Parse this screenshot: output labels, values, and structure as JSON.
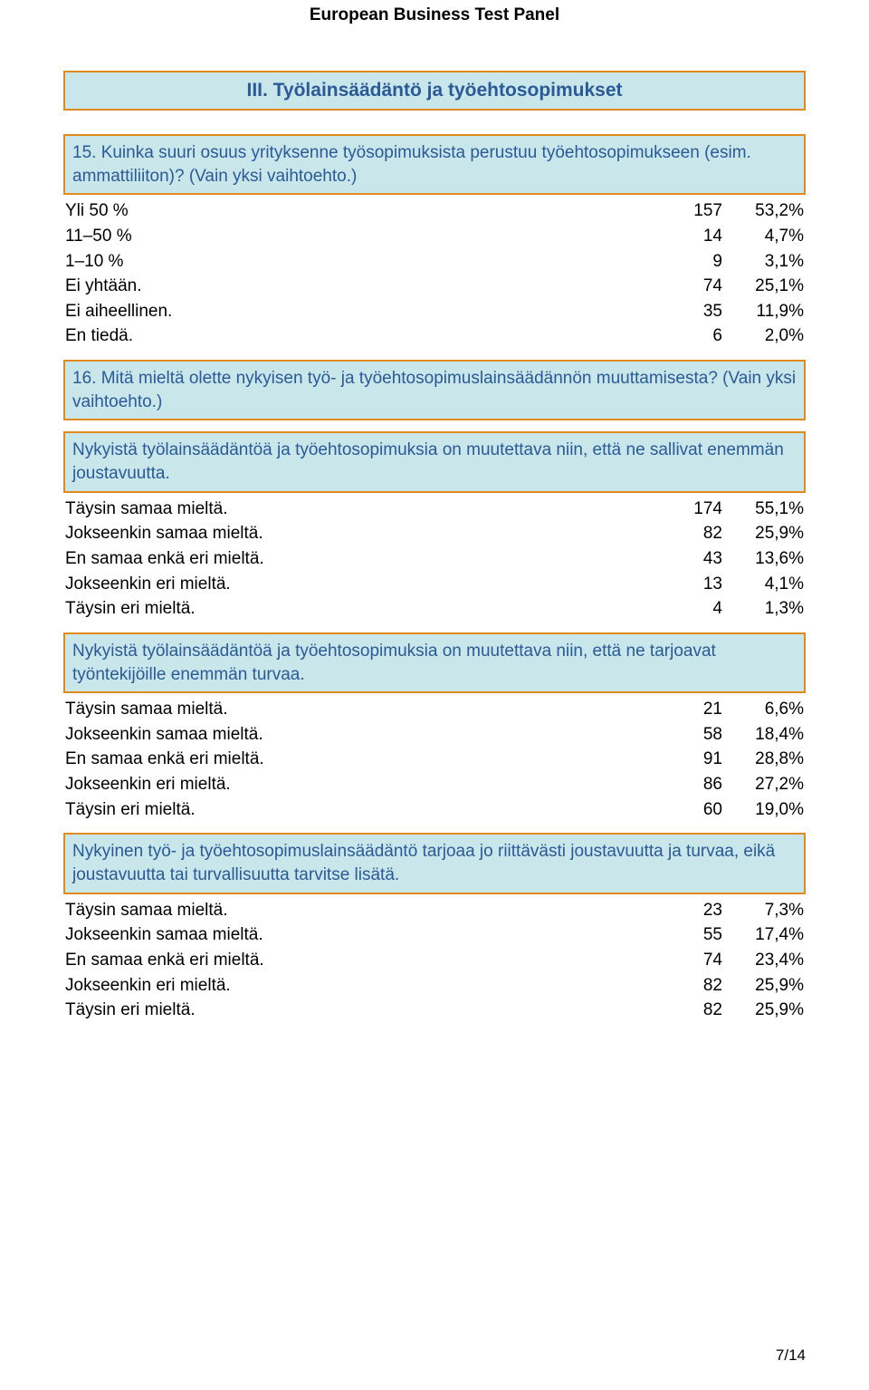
{
  "header": "European Business Test Panel",
  "section_title": "III. Työlainsäädäntö ja työehtosopimukset",
  "q15": {
    "text": "15. Kuinka suuri osuus yrityksenne työsopimuksista perustuu työehtosopimukseen (esim. ammattiliiton)? (Vain yksi vaihtoehto.)",
    "rows": [
      {
        "label": "Yli 50 %",
        "n": "157",
        "pct": "53,2%"
      },
      {
        "label": "11–50 %",
        "n": "14",
        "pct": "4,7%"
      },
      {
        "label": "1–10 %",
        "n": "9",
        "pct": "3,1%"
      },
      {
        "label": "Ei yhtään.",
        "n": "74",
        "pct": "25,1%"
      },
      {
        "label": "Ei aiheellinen.",
        "n": "35",
        "pct": "11,9%"
      },
      {
        "label": "En tiedä.",
        "n": "6",
        "pct": "2,0%"
      }
    ]
  },
  "q16": {
    "text": "16. Mitä mieltä olette nykyisen työ- ja työehtosopimuslainsäädännön muuttamisesta? (Vain yksi vaihtoehto.)",
    "subs": [
      {
        "text": "Nykyistä työlainsäädäntöä ja työehtosopimuksia on muutettava niin, että ne sallivat enemmän joustavuutta.",
        "rows": [
          {
            "label": "Täysin samaa mieltä.",
            "n": "174",
            "pct": "55,1%"
          },
          {
            "label": "Jokseenkin samaa mieltä.",
            "n": "82",
            "pct": "25,9%"
          },
          {
            "label": "En samaa enkä eri mieltä.",
            "n": "43",
            "pct": "13,6%"
          },
          {
            "label": "Jokseenkin eri mieltä.",
            "n": "13",
            "pct": "4,1%"
          },
          {
            "label": "Täysin eri mieltä.",
            "n": "4",
            "pct": "1,3%"
          }
        ]
      },
      {
        "text": "Nykyistä työlainsäädäntöä ja työehtosopimuksia on muutettava niin, että ne tarjoavat työntekijöille enemmän turvaa.",
        "rows": [
          {
            "label": "Täysin samaa mieltä.",
            "n": "21",
            "pct": "6,6%"
          },
          {
            "label": "Jokseenkin samaa mieltä.",
            "n": "58",
            "pct": "18,4%"
          },
          {
            "label": "En samaa enkä eri mieltä.",
            "n": "91",
            "pct": "28,8%"
          },
          {
            "label": "Jokseenkin eri mieltä.",
            "n": "86",
            "pct": "27,2%"
          },
          {
            "label": "Täysin eri mieltä.",
            "n": "60",
            "pct": "19,0%"
          }
        ]
      },
      {
        "text": "Nykyinen työ- ja työehtosopimuslainsäädäntö  tarjoaa jo riittävästi joustavuutta ja turvaa, eikä joustavuutta tai turvallisuutta tarvitse lisätä.",
        "rows": [
          {
            "label": "Täysin samaa mieltä.",
            "n": "23",
            "pct": "7,3%"
          },
          {
            "label": "Jokseenkin samaa mieltä.",
            "n": "55",
            "pct": "17,4%"
          },
          {
            "label": "En samaa enkä eri mieltä.",
            "n": "74",
            "pct": "23,4%"
          },
          {
            "label": "Jokseenkin eri mieltä.",
            "n": "82",
            "pct": "25,9%"
          },
          {
            "label": "Täysin eri mieltä.",
            "n": "82",
            "pct": "25,9%"
          }
        ]
      }
    ]
  },
  "page_number": "7/14"
}
